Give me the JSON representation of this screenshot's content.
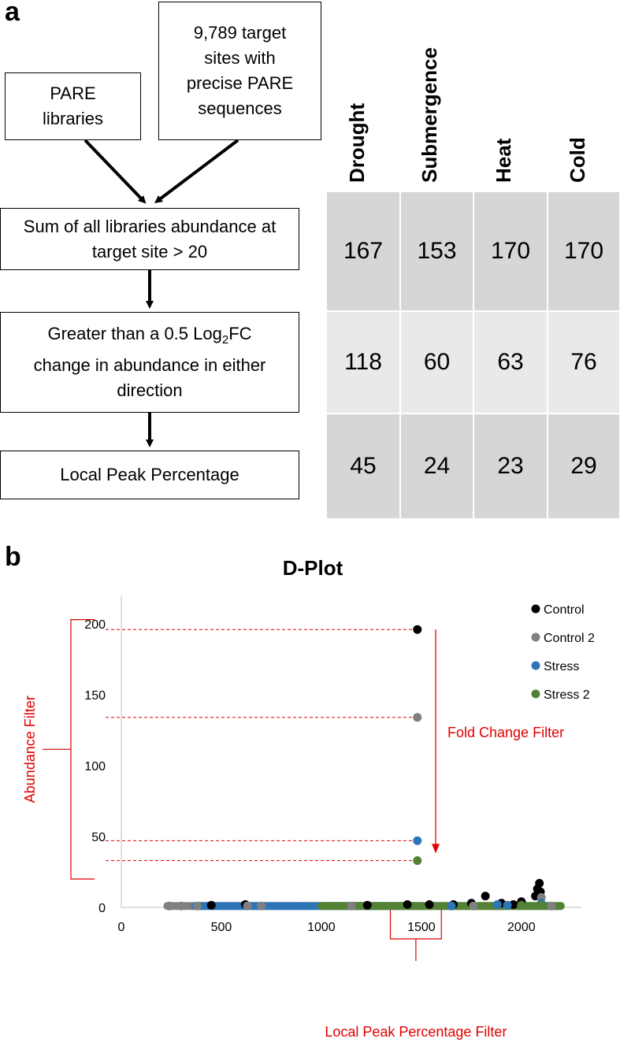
{
  "panel_a": {
    "label": "a",
    "box_pare": "PARE libraries",
    "box_sites": "9,789 target sites with precise PARE sequences",
    "box_sum": "Sum of all libraries abundance at target site > 20",
    "box_fc_1": "Greater than a 0.5 Log",
    "box_fc_sub": "2",
    "box_fc_2": "FC change in abundance in either direction",
    "box_peak": "Local Peak Percentage",
    "table": {
      "columns": [
        "Drought",
        "Submergence",
        "Heat",
        "Cold"
      ],
      "rows": [
        [
          "167",
          "153",
          "170",
          "170"
        ],
        [
          "118",
          "60",
          "63",
          "76"
        ],
        [
          "45",
          "24",
          "23",
          "29"
        ]
      ]
    }
  },
  "panel_b": {
    "label": "b",
    "annotations": {
      "abundance": "Abundance Filter",
      "fold_change": "Fold Change Filter",
      "local_peak": "Local Peak Percentage Filter"
    }
  },
  "colors": {
    "control": "#000000",
    "control2": "#808080",
    "stress": "#2e75b6",
    "stress2": "#548235",
    "annotation": "#e00000"
  },
  "chart_data": {
    "type": "scatter",
    "title": "D-Plot",
    "xlabel": "",
    "ylabel": "",
    "xlim": [
      0,
      2300
    ],
    "ylim": [
      0,
      220
    ],
    "xticks": [
      0,
      500,
      1000,
      1500,
      2000
    ],
    "yticks": [
      0,
      50,
      100,
      150,
      200
    ],
    "legend_position": "top-right",
    "series": [
      {
        "name": "Control",
        "color": "#000000",
        "points": [
          [
            1480,
            196
          ],
          [
            2090,
            17
          ],
          [
            2080,
            13
          ],
          [
            2095,
            11
          ],
          [
            2070,
            8
          ],
          [
            1820,
            8
          ],
          [
            2000,
            4
          ],
          [
            1750,
            3
          ],
          [
            1900,
            3
          ],
          [
            1960,
            2
          ],
          [
            1430,
            2
          ],
          [
            1540,
            2
          ],
          [
            1660,
            2
          ],
          [
            620,
            2
          ],
          [
            450,
            1.5
          ],
          [
            1230,
            1.5
          ]
        ]
      },
      {
        "name": "Control 2",
        "color": "#808080",
        "points": [
          [
            1480,
            134
          ],
          [
            2100,
            7
          ],
          [
            240,
            1
          ],
          [
            300,
            1
          ],
          [
            380,
            1
          ],
          [
            630,
            1
          ],
          [
            700,
            1
          ],
          [
            1150,
            1
          ],
          [
            1760,
            1
          ],
          [
            2150,
            1
          ]
        ]
      },
      {
        "name": "Stress",
        "color": "#2e75b6",
        "points": [
          [
            1480,
            47
          ],
          [
            2100,
            3
          ],
          [
            1880,
            2
          ],
          [
            1930,
            1.5
          ],
          [
            1650,
            1
          ]
        ]
      },
      {
        "name": "Stress 2",
        "color": "#548235",
        "points": [
          [
            1480,
            33
          ],
          [
            2000,
            1.5
          ],
          [
            2100,
            1.5
          ]
        ]
      }
    ],
    "baseline_bands": [
      {
        "series": "Control 2",
        "x_from": 230,
        "x_to": 2200,
        "y": 1
      },
      {
        "series": "Stress",
        "x_from": 370,
        "x_to": 1500,
        "y": 1
      },
      {
        "series": "Stress 2",
        "x_from": 1000,
        "x_to": 2200,
        "y": 1
      }
    ]
  }
}
